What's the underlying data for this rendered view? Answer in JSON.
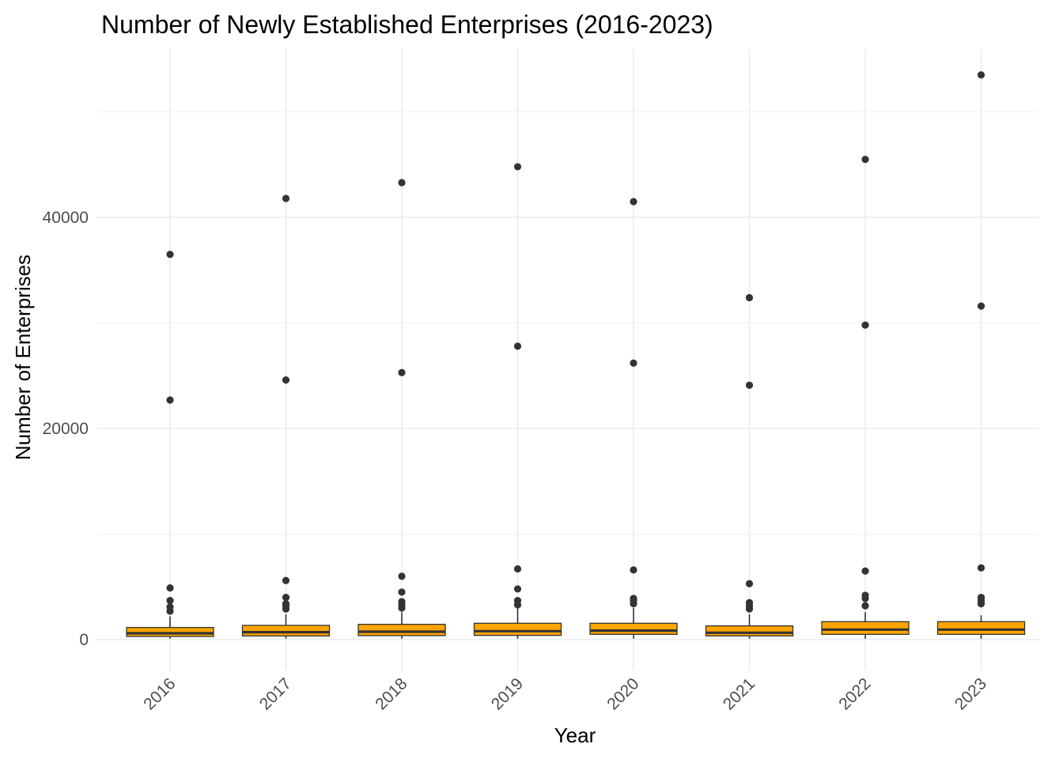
{
  "chart_data": {
    "type": "boxplot",
    "title": "Number of Newly Established Enterprises (2016-2023)",
    "xlabel": "Year",
    "ylabel": "Number of Enterprises",
    "ylim": [
      -2500,
      56500
    ],
    "y_ticks": [
      0,
      20000,
      40000
    ],
    "y_tick_labels": [
      "0",
      "20000",
      "40000"
    ],
    "y_minor_ticks": [
      10000,
      30000,
      50000
    ],
    "grid": true,
    "legend": "none",
    "box_fill": "#FFA500",
    "box_stroke": "#333333",
    "outlier_color": "#333333",
    "categories": [
      "2016",
      "2017",
      "2018",
      "2019",
      "2020",
      "2021",
      "2022",
      "2023"
    ],
    "boxes": [
      {
        "year": "2016",
        "whisker_low": 80,
        "q1": 300,
        "median": 600,
        "q3": 1150,
        "whisker_high": 2200,
        "outliers": [
          2700,
          3100,
          3700,
          4900,
          22700,
          36500
        ]
      },
      {
        "year": "2017",
        "whisker_low": 80,
        "q1": 350,
        "median": 700,
        "q3": 1350,
        "whisker_high": 2400,
        "outliers": [
          2900,
          3200,
          3400,
          4000,
          5600,
          24600,
          41800
        ]
      },
      {
        "year": "2018",
        "whisker_low": 80,
        "q1": 380,
        "median": 750,
        "q3": 1450,
        "whisker_high": 2600,
        "outliers": [
          3000,
          3300,
          3600,
          4500,
          6000,
          25300,
          43300
        ]
      },
      {
        "year": "2019",
        "whisker_low": 80,
        "q1": 400,
        "median": 800,
        "q3": 1550,
        "whisker_high": 3000,
        "outliers": [
          3300,
          3700,
          4800,
          6700,
          27800,
          44800
        ]
      },
      {
        "year": "2020",
        "whisker_low": 80,
        "q1": 500,
        "median": 850,
        "q3": 1550,
        "whisker_high": 3000,
        "outliers": [
          3400,
          3700,
          3900,
          6600,
          26200,
          41500
        ]
      },
      {
        "year": "2021",
        "whisker_low": 80,
        "q1": 350,
        "median": 650,
        "q3": 1300,
        "whisker_high": 2400,
        "outliers": [
          2900,
          3200,
          3500,
          5300,
          24100,
          32400
        ]
      },
      {
        "year": "2022",
        "whisker_low": 80,
        "q1": 500,
        "median": 950,
        "q3": 1700,
        "whisker_high": 2600,
        "outliers": [
          3200,
          3900,
          4200,
          6500,
          29800,
          45500
        ]
      },
      {
        "year": "2023",
        "whisker_low": 80,
        "q1": 500,
        "median": 950,
        "q3": 1700,
        "whisker_high": 2300,
        "outliers": [
          3400,
          3700,
          4000,
          6800,
          31600,
          53500
        ]
      }
    ]
  }
}
